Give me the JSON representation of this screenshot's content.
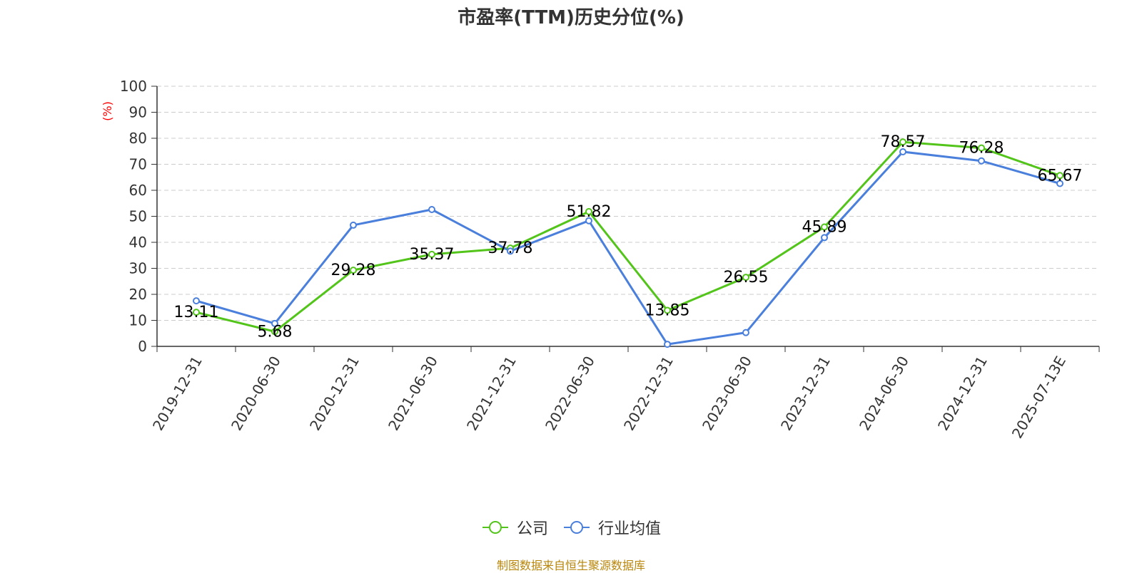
{
  "chart_data": {
    "type": "line",
    "title": "市盈率(TTM)历史分位(%)",
    "ylabel": "(%)",
    "ylim": [
      0,
      100
    ],
    "yticks": [
      0,
      10,
      20,
      30,
      40,
      50,
      60,
      70,
      80,
      90,
      100
    ],
    "categories": [
      "2019-12-31",
      "2020-06-30",
      "2020-12-31",
      "2021-06-30",
      "2021-12-31",
      "2022-06-30",
      "2022-12-31",
      "2023-06-30",
      "2023-12-31",
      "2024-06-30",
      "2024-12-31",
      "2025-07-13E"
    ],
    "grid": true,
    "legend_position": "bottom",
    "series": [
      {
        "name": "公司",
        "color": "#52c41a",
        "values": [
          13.11,
          5.68,
          29.28,
          35.37,
          37.78,
          51.82,
          13.85,
          26.55,
          45.89,
          78.57,
          76.28,
          65.67
        ],
        "show_labels": true
      },
      {
        "name": "行业均值",
        "color": "#4a7fdc",
        "values": [
          17.5,
          8.8,
          46.6,
          52.6,
          36.6,
          48.3,
          0.8,
          5.3,
          41.8,
          74.8,
          71.3,
          62.6
        ],
        "show_labels": false
      }
    ]
  },
  "footer": {
    "source": "制图数据来自恒生聚源数据库"
  },
  "colors": {
    "ylabel": "#ff0000",
    "axis": "#333333",
    "grid": "#cccccc"
  }
}
